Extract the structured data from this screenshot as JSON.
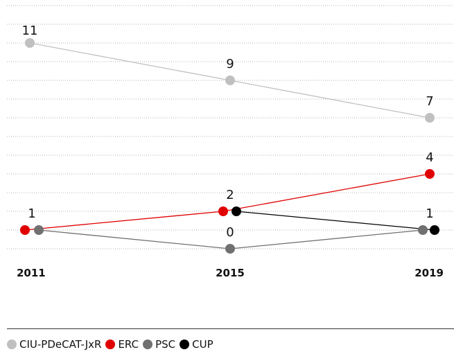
{
  "chart_data": {
    "type": "line",
    "x": [
      "2011",
      "2015",
      "2019"
    ],
    "ylim": [
      0,
      12
    ],
    "grid": true,
    "legend_position": "bottom",
    "series": [
      {
        "name": "CIU-PDeCAT-JxR",
        "values": [
          11,
          9,
          7
        ],
        "color": "#c0c0c0"
      },
      {
        "name": "ERC",
        "values": [
          1,
          2,
          4
        ],
        "color": "#e00000"
      },
      {
        "name": "PSC",
        "values": [
          1,
          0,
          1
        ],
        "color": "#707070"
      },
      {
        "name": "CUP",
        "values": [
          null,
          2,
          1
        ],
        "color": "#000000"
      }
    ],
    "data_labels": [
      {
        "x": "2011",
        "value": "11"
      },
      {
        "x": "2015",
        "value": "9"
      },
      {
        "x": "2019",
        "value": "7"
      },
      {
        "x": "2019",
        "value": "4"
      },
      {
        "x": "2015",
        "value": "2"
      },
      {
        "x": "2011",
        "value": "1"
      },
      {
        "x": "2019",
        "value": "1"
      },
      {
        "x": "2015",
        "value": "0"
      }
    ]
  }
}
